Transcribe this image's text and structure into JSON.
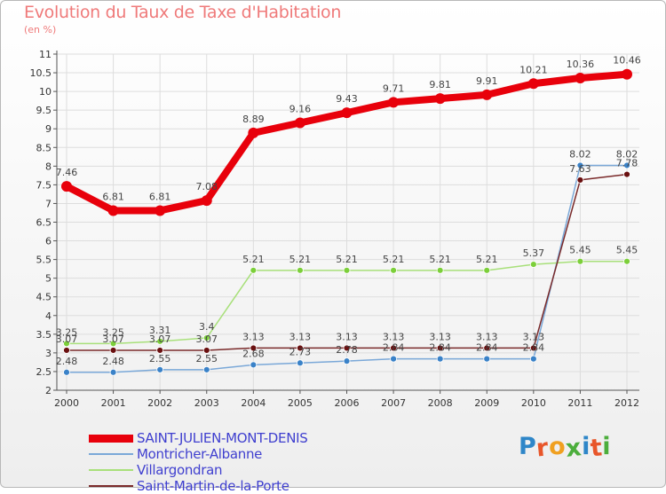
{
  "title": "Evolution du Taux de Taxe d'Habitation",
  "unit": "(en %)",
  "brand": "Proxiti",
  "chart_data": {
    "type": "line",
    "x": [
      "2000",
      "2001",
      "2002",
      "2003",
      "2004",
      "2005",
      "2006",
      "2007",
      "2008",
      "2009",
      "2010",
      "2011",
      "2012"
    ],
    "ylim": [
      2,
      11
    ],
    "yticks": [
      2,
      2.5,
      3,
      3.5,
      4,
      4.5,
      5,
      5.5,
      6,
      6.5,
      7,
      7.5,
      8,
      8.5,
      9,
      9.5,
      10,
      10.5,
      11
    ],
    "ytick_labels": [
      "2",
      "2.5",
      "3",
      "3.5",
      "4",
      "4.5",
      "5",
      "5.5",
      "6",
      "6.5",
      "7",
      "7.5",
      "8",
      "8.5",
      "9",
      "9.5",
      "10",
      "10.5",
      "11"
    ],
    "grid": true,
    "legend_position": "bottom-left",
    "series": [
      {
        "name": "SAINT-JULIEN-MONT-DENIS",
        "color": "#e8000b",
        "marker_color": "#e8000b",
        "values": [
          7.46,
          6.81,
          6.81,
          7.08,
          8.89,
          9.16,
          9.43,
          9.71,
          9.81,
          9.91,
          10.21,
          10.36,
          10.46
        ],
        "labels": [
          "7.46",
          "6.81",
          "6.81",
          "7.08",
          "8.89",
          "9.16",
          "9.43",
          "9.71",
          "9.81",
          "9.91",
          "10.21",
          "10.36",
          "10.46"
        ]
      },
      {
        "name": "Montricher-Albanne",
        "color": "#7aa8d8",
        "marker_color": "#3a82c8",
        "values": [
          2.48,
          2.48,
          2.55,
          2.55,
          2.68,
          2.73,
          2.78,
          2.84,
          2.84,
          2.84,
          2.84,
          8.02,
          8.02
        ],
        "labels": [
          "2.48",
          "2.48",
          "2.55",
          "2.55",
          "2.68",
          "2.73",
          "2.78",
          "2.84",
          "2.84",
          "2.84",
          "2.84",
          "8.02",
          "8.02"
        ]
      },
      {
        "name": "Villargondran",
        "color": "#a8e07a",
        "marker_color": "#7ccf3a",
        "values": [
          3.25,
          3.25,
          3.31,
          3.4,
          5.21,
          5.21,
          5.21,
          5.21,
          5.21,
          5.21,
          5.37,
          5.45,
          5.45
        ],
        "labels": [
          "3.25",
          "3.25",
          "3.31",
          "3.4",
          "5.21",
          "5.21",
          "5.21",
          "5.21",
          "5.21",
          "5.21",
          "5.37",
          "5.45",
          "5.45"
        ]
      },
      {
        "name": "Saint-Martin-de-la-Porte",
        "color": "#7a2a2a",
        "marker_color": "#6a1010",
        "values": [
          3.07,
          3.07,
          3.07,
          3.07,
          3.13,
          3.13,
          3.13,
          3.13,
          3.13,
          3.13,
          3.13,
          7.63,
          7.78
        ],
        "labels": [
          "3.07",
          "3.07",
          "3.07",
          "3.07",
          "3.13",
          "3.13",
          "3.13",
          "3.13",
          "3.13",
          "3.13",
          "3.13",
          "7.63",
          "7.78"
        ]
      }
    ]
  }
}
